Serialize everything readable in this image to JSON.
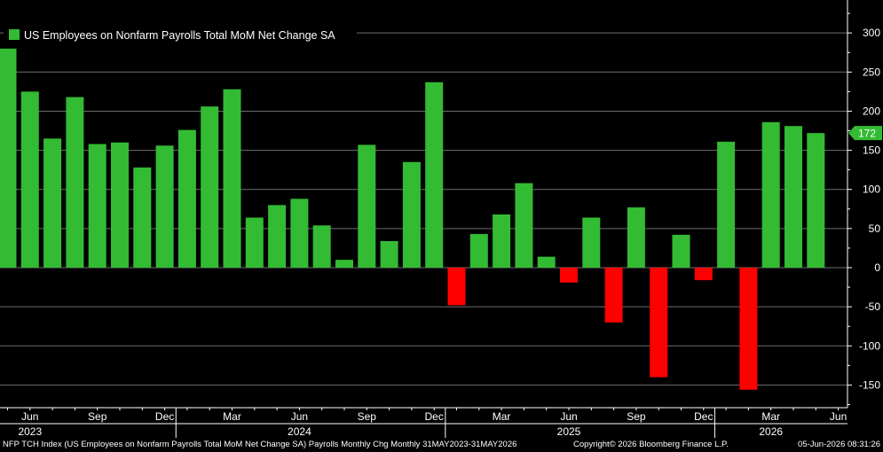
{
  "chart_data": {
    "type": "bar",
    "title": "",
    "legend": {
      "label": "US Employees on Nonfarm Payrolls Total MoM Net Change SA",
      "position": "top-left"
    },
    "x": [
      "2023-05",
      "2023-06",
      "2023-07",
      "2023-08",
      "2023-09",
      "2023-10",
      "2023-11",
      "2023-12",
      "2024-01",
      "2024-02",
      "2024-03",
      "2024-04",
      "2024-05",
      "2024-06",
      "2024-07",
      "2024-08",
      "2024-09",
      "2024-10",
      "2024-11",
      "2024-12",
      "2025-01",
      "2025-02",
      "2025-03",
      "2025-04",
      "2025-05",
      "2025-06",
      "2025-07",
      "2025-08",
      "2025-09",
      "2025-10",
      "2025-11",
      "2025-12",
      "2026-01",
      "2026-02",
      "2026-03",
      "2026-04",
      "2026-05"
    ],
    "values": [
      280,
      225,
      165,
      218,
      158,
      160,
      128,
      156,
      176,
      206,
      228,
      64,
      80,
      88,
      54,
      10,
      157,
      34,
      135,
      237,
      -48,
      43,
      68,
      108,
      14,
      -19,
      64,
      -70,
      77,
      -140,
      42,
      -16,
      161,
      -156,
      186,
      181,
      172
    ],
    "ylim": [
      -175,
      340
    ],
    "yticks": [
      -150,
      -100,
      -50,
      0,
      50,
      100,
      150,
      200,
      250,
      300
    ],
    "x_tick_labels": [
      {
        "label": "Jun",
        "month": "2023-06"
      },
      {
        "label": "Sep",
        "month": "2023-09"
      },
      {
        "label": "Dec",
        "month": "2023-12"
      },
      {
        "label": "Mar",
        "month": "2024-03"
      },
      {
        "label": "Jun",
        "month": "2024-06"
      },
      {
        "label": "Sep",
        "month": "2024-09"
      },
      {
        "label": "Dec",
        "month": "2024-12"
      },
      {
        "label": "Mar",
        "month": "2025-03"
      },
      {
        "label": "Jun",
        "month": "2025-06"
      },
      {
        "label": "Sep",
        "month": "2025-09"
      },
      {
        "label": "Dec",
        "month": "2025-12"
      },
      {
        "label": "Mar",
        "month": "2026-03"
      },
      {
        "label": "Jun",
        "month": "2026-06"
      }
    ],
    "year_labels": [
      {
        "label": "2023",
        "month": "2023-06"
      },
      {
        "label": "2024",
        "month": "2024-06"
      },
      {
        "label": "2025",
        "month": "2025-06"
      },
      {
        "label": "2026",
        "month": "2026-03"
      }
    ],
    "last_value_label": "172",
    "grid": true,
    "colors": {
      "positive": "#33bb33",
      "negative": "#ff0000",
      "grid": "#6e6e6e",
      "background": "#000000",
      "last_value_tag": "#33bb33"
    }
  },
  "footer": {
    "source": "NFP TCH Index (US Employees on Nonfarm Payrolls Total MoM Net Change SA) Payrolls Monthly Chg Monthly 31MAY2023-31MAY2026",
    "copyright": "Copyright© 2026 Bloomberg Finance L.P.",
    "timestamp": "05-Jun-2026 08:31:26"
  }
}
